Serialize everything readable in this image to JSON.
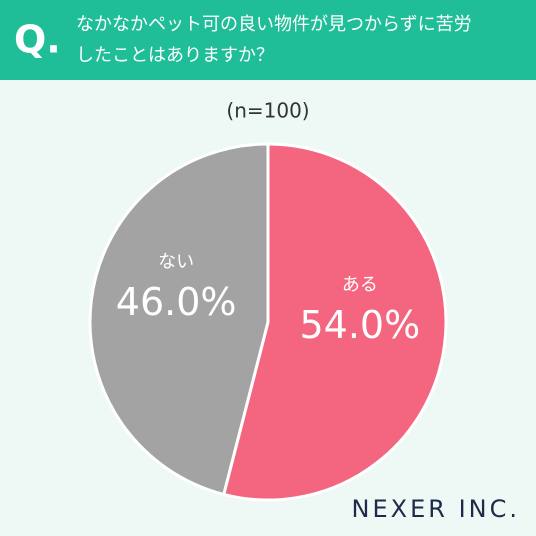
{
  "chart_data": {
    "type": "pie",
    "question_mark": "Q.",
    "title_lines": [
      "なかなかペット可の良い物件が見つからずに苦労",
      "したことはありますか？"
    ],
    "subtitle": "(n=100)",
    "categories": [
      "ある",
      "ない"
    ],
    "values": [
      54.0,
      46.0
    ],
    "value_labels": [
      "54.0%",
      "46.0%"
    ],
    "colors": [
      "#f4667f",
      "#a3a3a3"
    ],
    "logo": "NEXER INC."
  }
}
